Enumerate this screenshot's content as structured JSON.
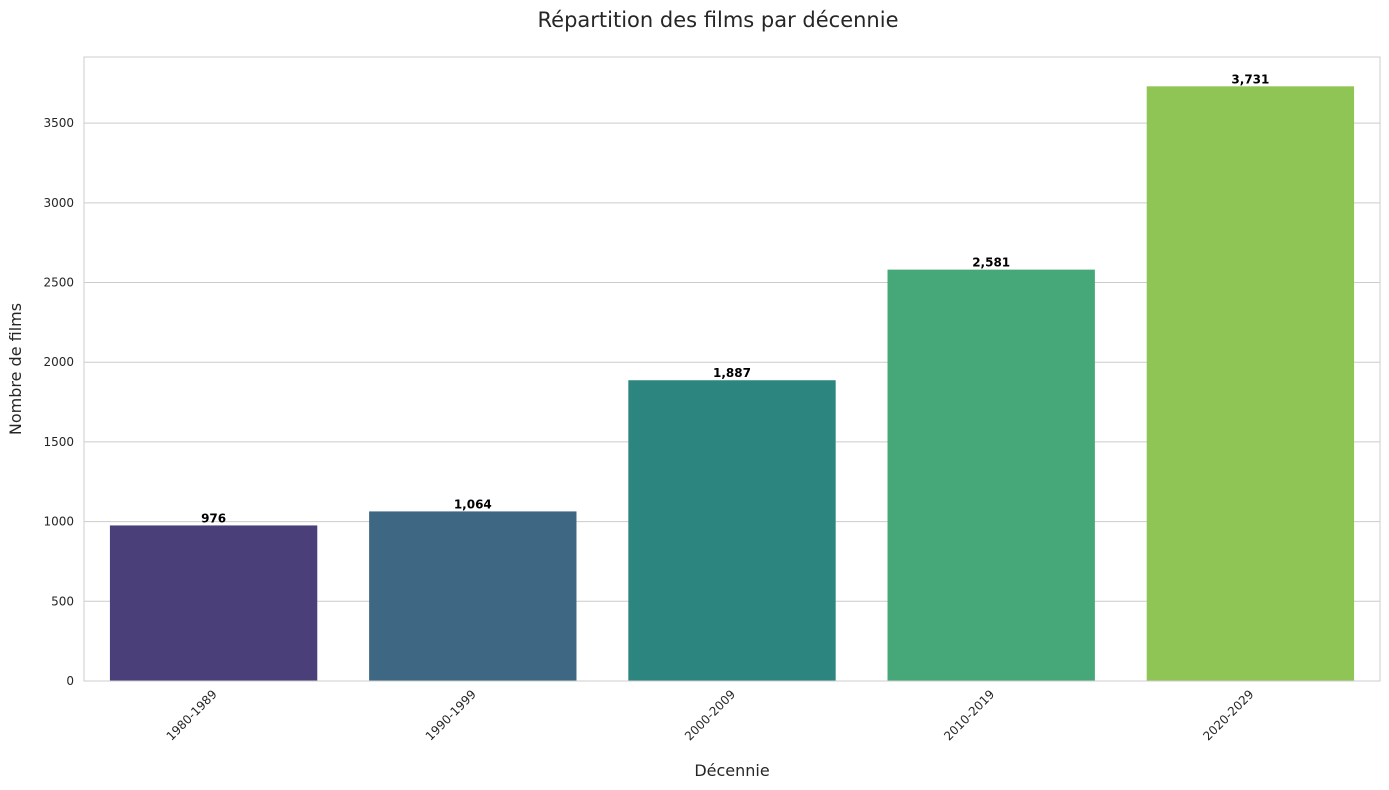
{
  "chart_data": {
    "type": "bar",
    "title": "Répartition des films par décennie",
    "xlabel": "Décennie",
    "ylabel": "Nombre de films",
    "categories": [
      "1980-1989",
      "1990-1999",
      "2000-2009",
      "2010-2019",
      "2020-2029"
    ],
    "values": [
      976,
      1064,
      1887,
      2581,
      3731
    ],
    "data_labels": [
      "976",
      "1,064",
      "1,887",
      "2,581",
      "3,731"
    ],
    "colors": [
      "#4a3f79",
      "#3d6782",
      "#2d8580",
      "#46a878",
      "#8ec555"
    ],
    "ylim": [
      0,
      3915
    ],
    "yticks": [
      0,
      500,
      1000,
      1500,
      2000,
      2500,
      3000,
      3500
    ],
    "grid": "horizontal",
    "style": "whitegrid",
    "xtick_rotation": 45
  }
}
